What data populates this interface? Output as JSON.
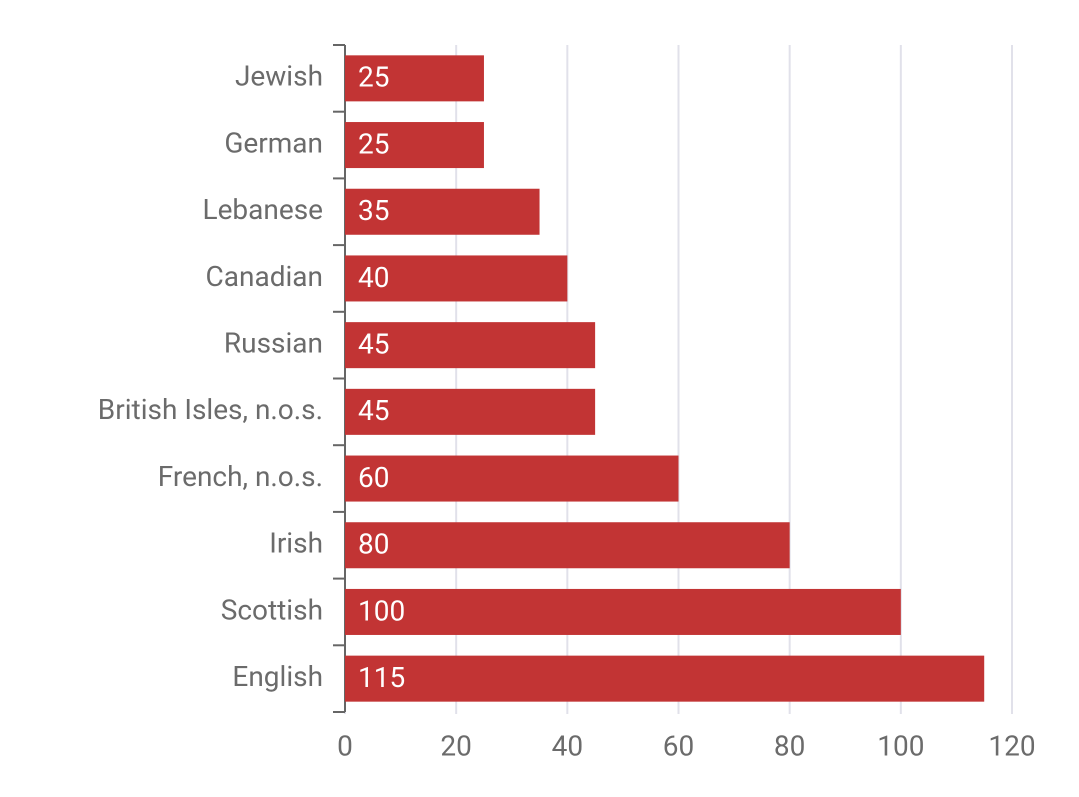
{
  "chart_data": {
    "type": "bar",
    "orientation": "horizontal",
    "categories": [
      "Jewish",
      "German",
      "Lebanese",
      "Canadian",
      "Russian",
      "British Isles, n.o.s.",
      "French, n.o.s.",
      "Irish",
      "Scottish",
      "English"
    ],
    "values": [
      25,
      25,
      35,
      40,
      45,
      45,
      60,
      80,
      100,
      115
    ],
    "color": "#c23434",
    "xlim": [
      0,
      120
    ],
    "xticks": [
      0,
      20,
      40,
      60,
      80,
      100,
      120
    ],
    "grid": true
  }
}
